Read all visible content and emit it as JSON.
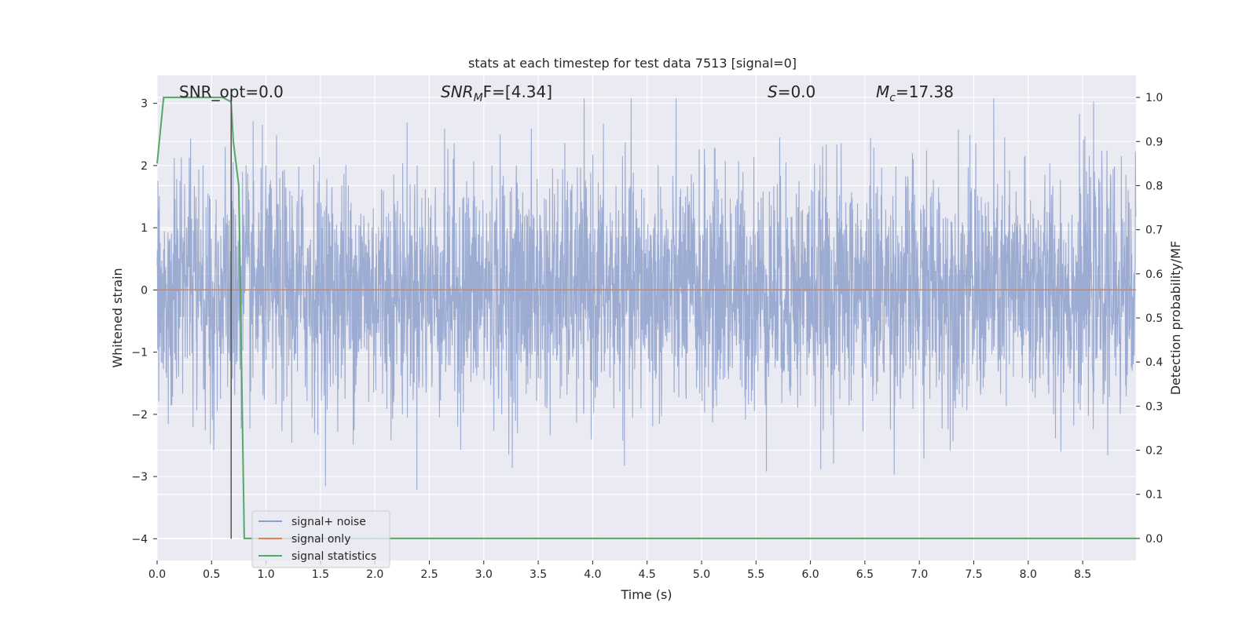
{
  "chart_data": {
    "type": "line",
    "title": "stats at each timestep for test data 7513 [signal=0]",
    "xlabel": "Time (s)",
    "ylabel": "Whitened strain",
    "y2label": "Detection probability/MF",
    "xlim": [
      0.0,
      8.99
    ],
    "ylim": [
      -4.35,
      3.45
    ],
    "y2lim": [
      -0.05,
      1.05
    ],
    "xticks": [
      0.0,
      0.5,
      1.0,
      1.5,
      2.0,
      2.5,
      3.0,
      3.5,
      4.0,
      4.5,
      5.0,
      5.5,
      6.0,
      6.5,
      7.0,
      7.5,
      8.0,
      8.5
    ],
    "xtick_labels": [
      "0.0",
      "0.5",
      "1.0",
      "1.5",
      "2.0",
      "2.5",
      "3.0",
      "3.5",
      "4.0",
      "4.5",
      "5.0",
      "5.5",
      "6.0",
      "6.5",
      "7.0",
      "7.5",
      "8.0",
      "8.5"
    ],
    "yticks": [
      3,
      2,
      1,
      0,
      -1,
      -2,
      -3,
      -4
    ],
    "ytick_labels": [
      "3",
      "2",
      "1",
      "0",
      "−1",
      "−2",
      "−3",
      "−4"
    ],
    "y2ticks": [
      1.0,
      0.9,
      0.8,
      0.7,
      0.6,
      0.5,
      0.4,
      0.3,
      0.2,
      0.1,
      0.0
    ],
    "y2tick_labels": [
      "1.0",
      "0.9",
      "0.8",
      "0.7",
      "0.6",
      "0.5",
      "0.4",
      "0.3",
      "0.2",
      "0.1",
      "0.0"
    ],
    "grid": true,
    "legend_position": "bottom-left",
    "annotations": {
      "snr_opt": "SNR_opt=0.0",
      "snr_mf_main": "SNR",
      "snr_mf_sub": "M",
      "snr_mf_rest": "F=[4.34]",
      "s_main": "S",
      "s_rest": "=0.0",
      "mc_main": "M",
      "mc_sub": "c",
      "mc_rest": "=17.38"
    },
    "vline_x": 0.68,
    "series": [
      {
        "name": "signal+ noise",
        "color": "#8da0cb",
        "axis": "left",
        "noise_envelope": {
          "sigma": 0.95,
          "peak_max": 3.08,
          "peak_min": -4.0,
          "x_start": 0.0,
          "x_end": 8.99
        }
      },
      {
        "name": "signal only",
        "color": "#dd8452",
        "axis": "left",
        "x": [
          0.0,
          8.99
        ],
        "y": [
          0.0,
          0.0
        ]
      },
      {
        "name": "signal statistics",
        "color": "#55a868",
        "axis": "right",
        "x": [
          0.0,
          0.06,
          0.1,
          0.2,
          0.3,
          0.4,
          0.5,
          0.6,
          0.68,
          0.7,
          0.75,
          0.8,
          0.85,
          1.0,
          2.0,
          4.0,
          6.0,
          8.0,
          8.99
        ],
        "y": [
          0.85,
          1.0,
          1.0,
          1.0,
          1.0,
          1.0,
          1.0,
          1.0,
          0.99,
          0.9,
          0.8,
          0.0,
          0.0,
          0.0,
          0.0,
          0.0,
          0.0,
          0.0,
          0.0
        ]
      }
    ]
  }
}
